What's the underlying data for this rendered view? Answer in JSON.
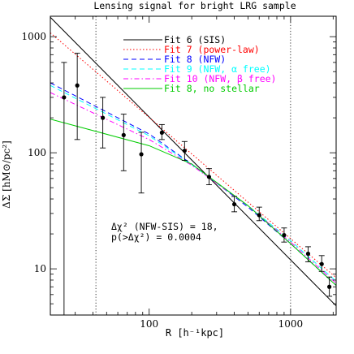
{
  "chart_data": {
    "type": "line",
    "title": "Lensing signal for bright LRG sample",
    "xlabel": "R [h⁻¹kpc]",
    "ylabel": "ΔΣ [hM⊙/pc²]",
    "xscale": "log",
    "yscale": "log",
    "xlim": [
      20,
      2100
    ],
    "ylim": [
      4,
      1500
    ],
    "x_ticks": [
      {
        "value": 100,
        "label": "100"
      },
      {
        "value": 1000,
        "label": "1000"
      }
    ],
    "y_ticks": [
      {
        "value": 10,
        "label": "10"
      },
      {
        "value": 100,
        "label": "100"
      },
      {
        "value": 1000,
        "label": "1000"
      }
    ],
    "vertical_reference_lines": [
      42,
      1000
    ],
    "legend_position": "top-right",
    "series": [
      {
        "name": "Fit 6 (SIS)",
        "color": "#000000",
        "dash": "solid",
        "x": [
          20,
          2100
        ],
        "y": [
          1470,
          4.8
        ]
      },
      {
        "name": "Fit 7 (power-law)",
        "color": "#ff0000",
        "dash": "dotted",
        "x": [
          20,
          2100
        ],
        "y": [
          1080,
          8.4
        ]
      },
      {
        "name": "Fit 8 (NFW)",
        "color": "#0000ff",
        "dash": "dashed",
        "x": [
          20,
          100,
          200,
          500,
          1000,
          2100
        ],
        "y": [
          400,
          145,
          80,
          34,
          16.5,
          7.2
        ]
      },
      {
        "name": "Fit 9 (NFW, α free)",
        "color": "#00ffff",
        "dash": "dashed",
        "x": [
          20,
          100,
          200,
          500,
          1000,
          2100
        ],
        "y": [
          380,
          140,
          79,
          35,
          17.5,
          7.8
        ]
      },
      {
        "name": "Fit 10 (NFW, β free)",
        "color": "#ff00ff",
        "dash": "dashdot",
        "x": [
          20,
          100,
          200,
          500,
          1000,
          2100
        ],
        "y": [
          330,
          130,
          78,
          35,
          17,
          7.5
        ]
      },
      {
        "name": "Fit 8, no stellar",
        "color": "#00cc00",
        "dash": "solid",
        "x": [
          20,
          100,
          200,
          500,
          1000,
          2100
        ],
        "y": [
          195,
          115,
          80,
          35,
          16.5,
          7.2
        ]
      }
    ],
    "points": {
      "x": [
        25,
        31,
        47,
        66,
        88,
        123,
        178,
        265,
        400,
        600,
        900,
        1330,
        1660,
        1880
      ],
      "y": [
        300,
        380,
        200,
        142,
        97,
        149,
        104,
        62,
        36,
        29,
        19.5,
        13.5,
        11,
        7
      ],
      "yerr_low": [
        4,
        130,
        110,
        70,
        45,
        130,
        86,
        53,
        31,
        26,
        17,
        11.5,
        9.5,
        5.8
      ],
      "yerr_high": [
        600,
        720,
        300,
        215,
        150,
        175,
        125,
        73,
        42,
        34,
        22.5,
        15.5,
        13,
        8.5
      ]
    },
    "annotations": [
      "Δχ² (NFW-SIS) = 18,",
      "p(>Δχ²) = 0.0004"
    ]
  }
}
